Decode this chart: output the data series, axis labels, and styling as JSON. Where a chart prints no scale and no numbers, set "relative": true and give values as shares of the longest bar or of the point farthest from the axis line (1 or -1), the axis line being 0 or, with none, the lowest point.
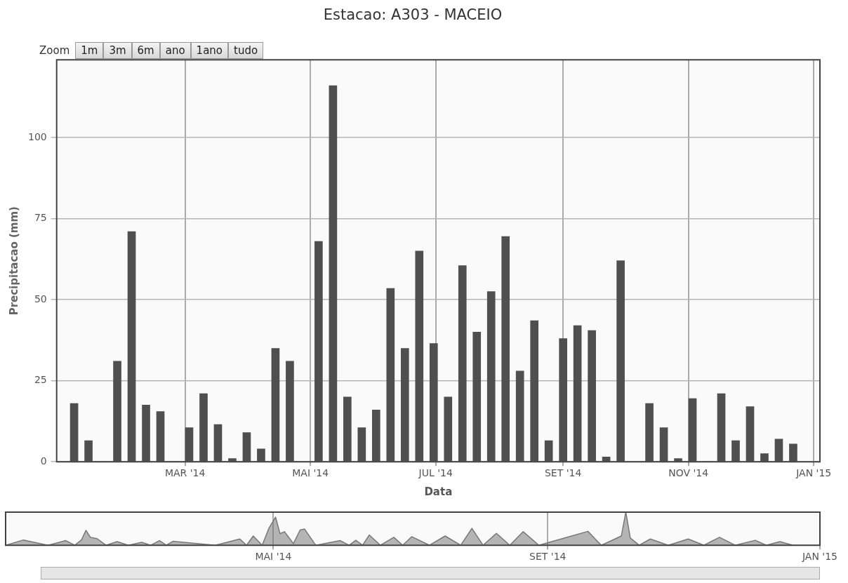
{
  "chart_data": [
    {
      "type": "bar",
      "title": "Estacao: A303 - MACEIO",
      "xlabel": "Data",
      "ylabel": "Precipitacao (mm)",
      "annotations": [
        "Zoom",
        "1m",
        "3m",
        "6m",
        "ano",
        "1ano",
        "tudo"
      ],
      "x": [
        "2014-01-06",
        "2014-01-13",
        "2014-01-20",
        "2014-01-27",
        "2014-02-03",
        "2014-02-10",
        "2014-02-17",
        "2014-02-24",
        "2014-03-03",
        "2014-03-10",
        "2014-03-17",
        "2014-03-24",
        "2014-03-31",
        "2014-04-07",
        "2014-04-14",
        "2014-04-21",
        "2014-04-28",
        "2014-05-05",
        "2014-05-12",
        "2014-05-19",
        "2014-05-26",
        "2014-06-02",
        "2014-06-09",
        "2014-06-16",
        "2014-06-23",
        "2014-06-30",
        "2014-07-07",
        "2014-07-14",
        "2014-07-21",
        "2014-07-28",
        "2014-08-04",
        "2014-08-11",
        "2014-08-18",
        "2014-08-25",
        "2014-09-01",
        "2014-09-08",
        "2014-09-15",
        "2014-09-22",
        "2014-09-29",
        "2014-10-06",
        "2014-10-13",
        "2014-10-20",
        "2014-10-27",
        "2014-11-03",
        "2014-11-10",
        "2014-11-17",
        "2014-11-24",
        "2014-12-01",
        "2014-12-08",
        "2014-12-15",
        "2014-12-22"
      ],
      "values": [
        18,
        6.5,
        0,
        31,
        71,
        17.5,
        15.5,
        0,
        10.5,
        21,
        11.5,
        1,
        9,
        4,
        35,
        31,
        null,
        68,
        116,
        20,
        10.5,
        16,
        53.5,
        35,
        65,
        36.5,
        20,
        60.5,
        40,
        52.5,
        69.5,
        28,
        43.5,
        6.5,
        38,
        42,
        40.5,
        1.5,
        62,
        null,
        18,
        10.5,
        1,
        19.5,
        0,
        21,
        6.5,
        17,
        2.5,
        7,
        5.5
      ],
      "color": "#4f4f4f",
      "xlim": [
        "2013-12-28T12:00",
        "2015-01-04"
      ],
      "xticks": [
        {
          "value": "2014-03-01",
          "label": "MAR '14"
        },
        {
          "value": "2014-05-01",
          "label": "MAI '14"
        },
        {
          "value": "2014-07-01",
          "label": "JUL '14"
        },
        {
          "value": "2014-09-01",
          "label": "SET '14"
        },
        {
          "value": "2014-11-01",
          "label": "NOV '14"
        },
        {
          "value": "2015-01-01",
          "label": "JAN '15"
        }
      ],
      "ylim": [
        0,
        124
      ],
      "yticks": [
        0,
        25,
        50,
        75,
        100
      ],
      "grid": true
    },
    {
      "type": "area",
      "relative": true,
      "color": "#777777",
      "x": [
        "2014-01-01",
        "2014-01-09",
        "2014-01-20",
        "2014-01-28",
        "2014-02-01",
        "2014-02-04",
        "2014-02-06",
        "2014-02-08",
        "2014-02-11",
        "2014-02-15",
        "2014-02-20",
        "2014-02-25",
        "2014-03-03",
        "2014-03-07",
        "2014-03-11",
        "2014-03-14",
        "2014-03-17",
        "2014-04-05",
        "2014-04-16",
        "2014-04-19",
        "2014-04-22",
        "2014-04-26",
        "2014-04-29",
        "2014-05-02",
        "2014-05-04",
        "2014-05-06",
        "2014-05-10",
        "2014-05-13",
        "2014-05-15",
        "2014-05-20",
        "2014-05-31",
        "2014-06-04",
        "2014-06-07",
        "2014-06-10",
        "2014-06-13",
        "2014-06-18",
        "2014-06-24",
        "2014-06-28",
        "2014-07-02",
        "2014-07-10",
        "2014-07-17",
        "2014-07-24",
        "2014-07-29",
        "2014-08-03",
        "2014-08-09",
        "2014-08-15",
        "2014-08-21",
        "2014-08-28",
        "2014-09-19",
        "2014-09-25",
        "2014-10-04",
        "2014-10-06",
        "2014-10-08",
        "2014-10-12",
        "2014-10-17",
        "2014-10-25",
        "2014-11-03",
        "2014-11-10",
        "2014-11-17",
        "2014-11-24",
        "2014-12-03",
        "2014-12-08",
        "2014-12-14",
        "2014-12-20",
        "2015-01-01"
      ],
      "values": [
        0,
        0.16,
        0,
        0.14,
        0,
        0.16,
        0.45,
        0.24,
        0.2,
        0,
        0.11,
        0,
        0.09,
        0,
        0.14,
        0,
        0.12,
        0,
        0.19,
        0,
        0.28,
        0,
        0.51,
        0.85,
        0.35,
        0.41,
        0.05,
        0.46,
        0.49,
        0,
        0.14,
        0,
        0.15,
        0,
        0.31,
        0,
        0.24,
        0,
        0.26,
        0,
        0.28,
        0,
        0.51,
        0,
        0.36,
        0,
        0.41,
        0,
        0.42,
        0,
        0.28,
        1,
        0.22,
        0,
        0.19,
        0,
        0.19,
        0,
        0.24,
        0,
        0.15,
        0,
        0.11,
        0,
        0
      ],
      "xlim": [
        "2014-01-01",
        "2015-01-01"
      ],
      "xticks": [
        {
          "value": "2014-05-01",
          "label": "MAI '14"
        },
        {
          "value": "2014-09-01",
          "label": "SET '14"
        },
        {
          "value": "2015-01-01",
          "label": "JAN '15"
        }
      ],
      "grid": "x"
    }
  ]
}
